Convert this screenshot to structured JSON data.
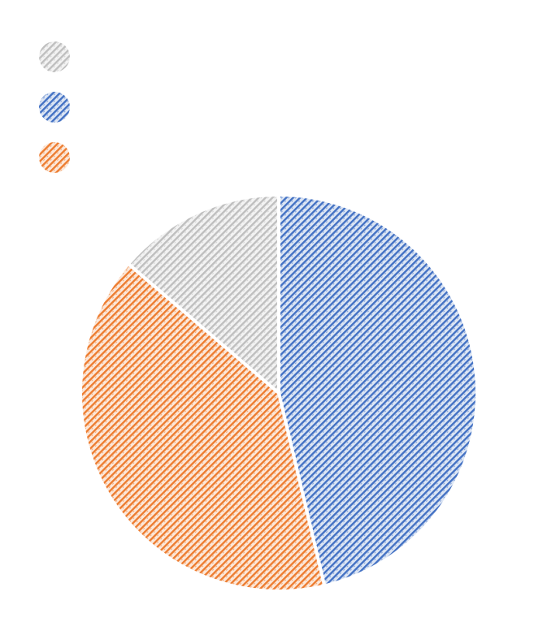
{
  "chart_data": {
    "type": "pie",
    "title": "",
    "legend": "top-left",
    "fill_style": "diagonal-hatch",
    "series": [
      {
        "value": 46.3,
        "color": "#4472C4"
      },
      {
        "value": 40.0,
        "color": "#ED7D31"
      },
      {
        "value": 13.7,
        "color": "#BFBFBF"
      }
    ],
    "legend_order": [
      2,
      0,
      1
    ],
    "start_angle_deg": 0,
    "direction": "clockwise"
  }
}
